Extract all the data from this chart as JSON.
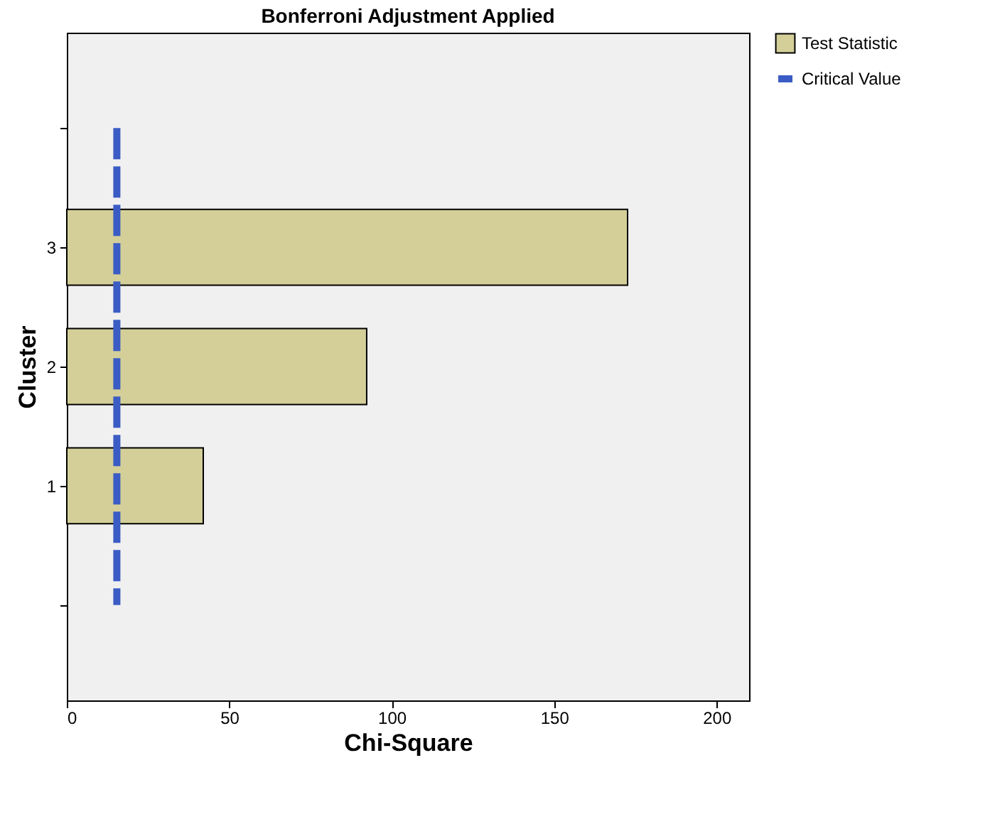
{
  "chart_data": {
    "type": "bar",
    "orientation": "horizontal",
    "title": "Bonferroni Adjustment Applied",
    "xlabel": "Chi-Square",
    "ylabel": "Cluster",
    "categories": [
      null,
      "3",
      "2",
      "1",
      null
    ],
    "series": [
      {
        "name": "Critical Value",
        "type": "line",
        "line_style": "dashed",
        "color": "#3b5cc4",
        "values": [
          15.4,
          15.4,
          15.4,
          15.4,
          15.4
        ]
      },
      {
        "name": "Test Statistic",
        "type": "bar",
        "color": "#d4cf99",
        "values": [
          null,
          172.6,
          92.3,
          42.0,
          null
        ]
      }
    ],
    "xlim": [
      0,
      210
    ],
    "xticks": [
      0,
      50,
      100,
      150,
      200
    ],
    "grid": false,
    "legend": "top right"
  }
}
